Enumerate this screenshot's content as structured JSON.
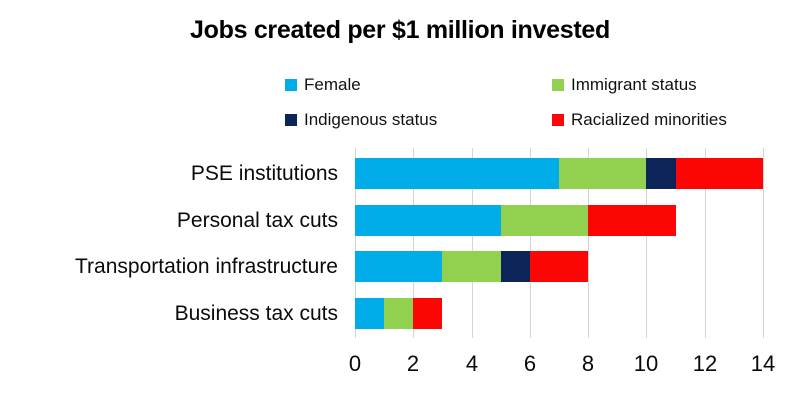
{
  "chart_data": {
    "type": "bar",
    "orientation": "horizontal",
    "stacked": true,
    "title": "Jobs created per $1 million invested",
    "categories": [
      "PSE institutions",
      "Personal tax cuts",
      "Transportation infrastructure",
      "Business tax cuts"
    ],
    "series": [
      {
        "name": "Female",
        "color": "#00ADE9",
        "values": [
          7,
          5,
          3,
          1
        ]
      },
      {
        "name": "Immigrant status",
        "color": "#92D050",
        "values": [
          3,
          3,
          2,
          1
        ]
      },
      {
        "name": "Indigenous status",
        "color": "#0D2458",
        "values": [
          1,
          0,
          1,
          0
        ]
      },
      {
        "name": "Racialized minorities",
        "color": "#FB0505",
        "values": [
          3,
          3,
          2,
          1
        ]
      }
    ],
    "totals": [
      14,
      11,
      8,
      3
    ],
    "xlim": [
      0,
      14
    ],
    "xticks": [
      0,
      2,
      4,
      6,
      8,
      10,
      12,
      14
    ],
    "grid": "vertical",
    "gridline_color": "#D5D5D5",
    "legend_position": "top",
    "legend_columns": 2,
    "xlabel": "",
    "ylabel": ""
  }
}
